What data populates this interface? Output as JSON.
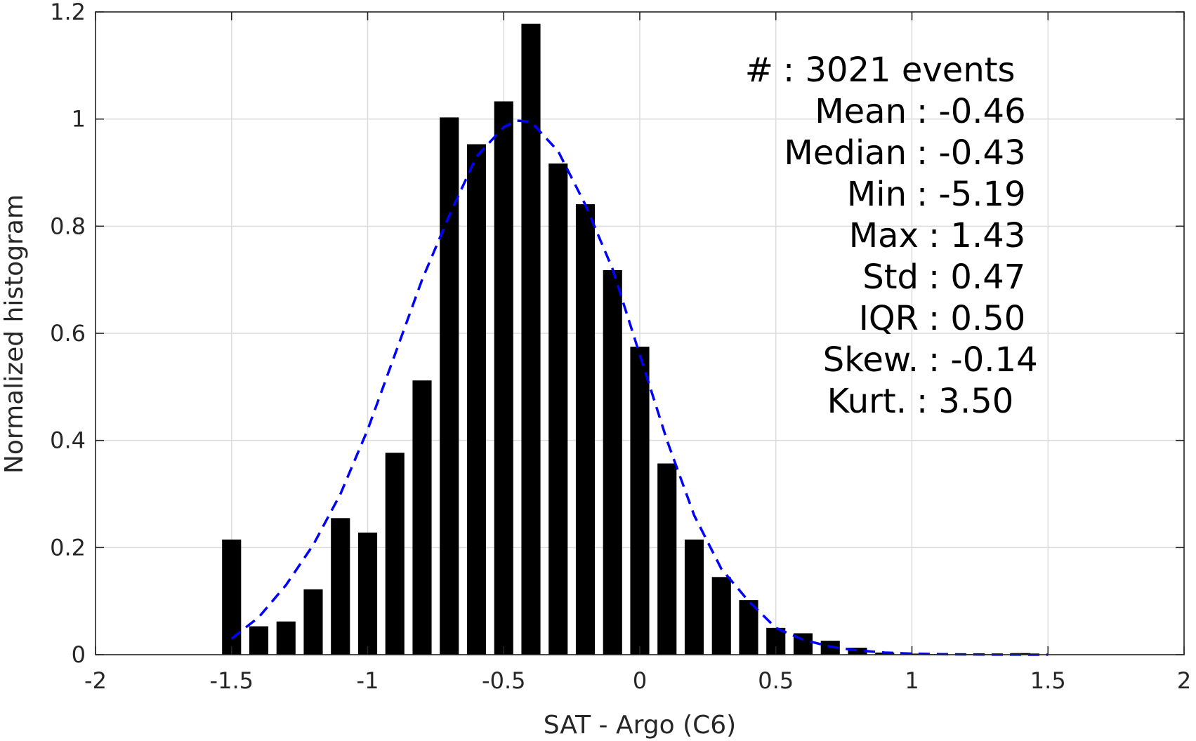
{
  "colors": {
    "bar": "#000000",
    "fit_line": "#0000ff",
    "grid": "#dcdcdc",
    "axis": "#262626",
    "background": "#ffffff"
  },
  "chart_data": {
    "type": "bar",
    "title": "",
    "xlabel": "SAT - Argo (C6)",
    "ylabel": "Normalized histogram",
    "xlim": [
      -2,
      2
    ],
    "ylim": [
      0,
      1.2
    ],
    "xticks": [
      -2,
      -1.5,
      -1,
      -0.5,
      0,
      0.5,
      1,
      1.5,
      2
    ],
    "xtick_labels": [
      "-2",
      "-1.5",
      "-1",
      "-0.5",
      "0",
      "0.5",
      "1",
      "1.5",
      "2"
    ],
    "yticks": [
      0,
      0.2,
      0.4,
      0.6,
      0.8,
      1,
      1.2
    ],
    "ytick_labels": [
      "0",
      "0.2",
      "0.4",
      "0.6",
      "0.8",
      "1",
      "1.2"
    ],
    "grid": true,
    "bin_width": 0.1,
    "series": [
      {
        "type": "bar",
        "x": [
          -1.5,
          -1.4,
          -1.3,
          -1.2,
          -1.1,
          -1.0,
          -0.9,
          -0.8,
          -0.7,
          -0.6,
          -0.5,
          -0.4,
          -0.3,
          -0.2,
          -0.1,
          0.0,
          0.1,
          0.2,
          0.3,
          0.4,
          0.5,
          0.6,
          0.7,
          0.8,
          0.9,
          1.0,
          1.1,
          1.2,
          1.3,
          1.4
        ],
        "values": [
          0.215,
          0.053,
          0.062,
          0.122,
          0.255,
          0.228,
          0.377,
          0.512,
          1.003,
          0.953,
          1.033,
          1.178,
          0.917,
          0.841,
          0.718,
          0.575,
          0.357,
          0.215,
          0.145,
          0.102,
          0.05,
          0.04,
          0.026,
          0.013,
          0.004,
          0.002,
          0.001,
          0.001,
          0.001,
          0.003
        ]
      },
      {
        "type": "line",
        "style": "dashed",
        "x": [
          -1.5,
          -1.4,
          -1.3,
          -1.2,
          -1.1,
          -1.0,
          -0.9,
          -0.8,
          -0.7,
          -0.6,
          -0.5,
          -0.45,
          -0.4,
          -0.3,
          -0.2,
          -0.1,
          0.0,
          0.1,
          0.2,
          0.3,
          0.4,
          0.5,
          0.6,
          0.7,
          0.8,
          0.9,
          1.0,
          1.1,
          1.2,
          1.3,
          1.4,
          1.5
        ],
        "values": [
          0.03,
          0.07,
          0.13,
          0.205,
          0.3,
          0.42,
          0.56,
          0.7,
          0.82,
          0.93,
          0.985,
          0.997,
          0.995,
          0.94,
          0.84,
          0.72,
          0.56,
          0.4,
          0.26,
          0.16,
          0.1,
          0.05,
          0.028,
          0.015,
          0.008,
          0.004,
          0.002,
          0.001,
          0.0005,
          0.0002,
          0.0001,
          0.0
        ]
      }
    ],
    "annotations": [
      "#  : 3021 events",
      "Mean : -0.46",
      "Median : -0.43",
      "Min : -5.19",
      "Max : 1.43",
      "Std : 0.47",
      "IQR : 0.50",
      "Skew. : -0.14",
      "Kurt. : 3.50"
    ]
  }
}
